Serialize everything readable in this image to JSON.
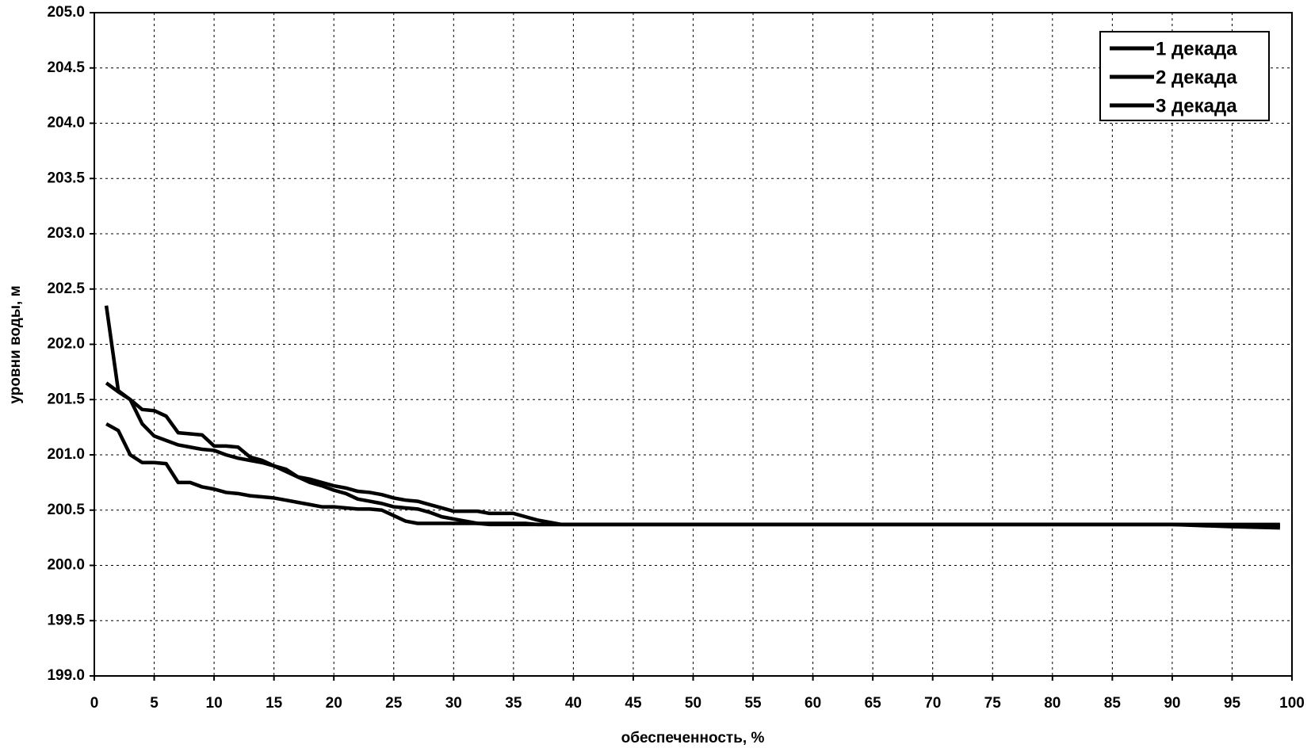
{
  "chart_data": {
    "type": "line",
    "xlabel": "обеспеченность, %",
    "ylabel": "уровни воды, м",
    "x": [
      1,
      2,
      3,
      4,
      5,
      6,
      7,
      8,
      9,
      10,
      11,
      12,
      13,
      14,
      15,
      16,
      17,
      18,
      19,
      20,
      21,
      22,
      23,
      24,
      25,
      26,
      27,
      28,
      29,
      30,
      31,
      32,
      33,
      34,
      35,
      36,
      37,
      38,
      39,
      40,
      50,
      60,
      70,
      80,
      90,
      95,
      99
    ],
    "series": [
      {
        "name": "1 декада",
        "color": "#000000",
        "values": [
          202.35,
          201.58,
          201.5,
          201.28,
          201.17,
          201.13,
          201.09,
          201.07,
          201.05,
          201.04,
          201.0,
          200.97,
          200.95,
          200.93,
          200.9,
          200.85,
          200.8,
          200.75,
          200.72,
          200.68,
          200.65,
          200.6,
          200.58,
          200.56,
          200.53,
          200.52,
          200.51,
          200.48,
          200.44,
          200.42,
          200.4,
          200.38,
          200.37,
          200.37,
          200.37,
          200.37,
          200.37,
          200.37,
          200.37,
          200.37,
          200.37,
          200.37,
          200.37,
          200.37,
          200.37,
          200.35,
          200.34
        ]
      },
      {
        "name": "2 декада",
        "color": "#000000",
        "values": [
          201.65,
          201.57,
          201.5,
          201.41,
          201.4,
          201.35,
          201.2,
          201.19,
          201.18,
          201.08,
          201.08,
          201.07,
          200.98,
          200.95,
          200.9,
          200.87,
          200.8,
          200.78,
          200.75,
          200.72,
          200.7,
          200.67,
          200.66,
          200.64,
          200.61,
          200.59,
          200.58,
          200.55,
          200.52,
          200.49,
          200.49,
          200.49,
          200.47,
          200.47,
          200.47,
          200.44,
          200.41,
          200.39,
          200.37,
          200.37,
          200.37,
          200.37,
          200.37,
          200.37,
          200.37,
          200.37,
          200.37
        ]
      },
      {
        "name": "3 декада",
        "color": "#000000",
        "values": [
          201.28,
          201.22,
          201.0,
          200.93,
          200.93,
          200.92,
          200.75,
          200.75,
          200.71,
          200.69,
          200.66,
          200.65,
          200.63,
          200.62,
          200.61,
          200.59,
          200.57,
          200.55,
          200.53,
          200.53,
          200.52,
          200.51,
          200.51,
          200.5,
          200.45,
          200.4,
          200.38,
          200.38,
          200.38,
          200.38,
          200.38,
          200.38,
          200.38,
          200.38,
          200.38,
          200.38,
          200.37,
          200.37,
          200.37,
          200.37,
          200.37,
          200.37,
          200.37,
          200.37,
          200.37,
          200.36,
          200.36
        ]
      }
    ],
    "xlim": [
      0,
      100
    ],
    "xticks": [
      0,
      5,
      10,
      15,
      20,
      25,
      30,
      35,
      40,
      45,
      50,
      55,
      60,
      65,
      70,
      75,
      80,
      85,
      90,
      95,
      100
    ],
    "ylim": [
      199,
      205
    ],
    "yticks": [
      {
        "value": 199,
        "label": "199.0"
      },
      199.5,
      {
        "value": 200,
        "label": "200.0"
      },
      200.5,
      {
        "value": 201,
        "label": "201.0"
      },
      201.5,
      {
        "value": 202,
        "label": "202.0"
      },
      202.5,
      {
        "value": 203,
        "label": "203.0"
      },
      203.5,
      {
        "value": 204,
        "label": "204.0"
      },
      204.5,
      {
        "value": 205,
        "label": "205.0"
      }
    ],
    "grid": true,
    "legend": "upper right"
  }
}
